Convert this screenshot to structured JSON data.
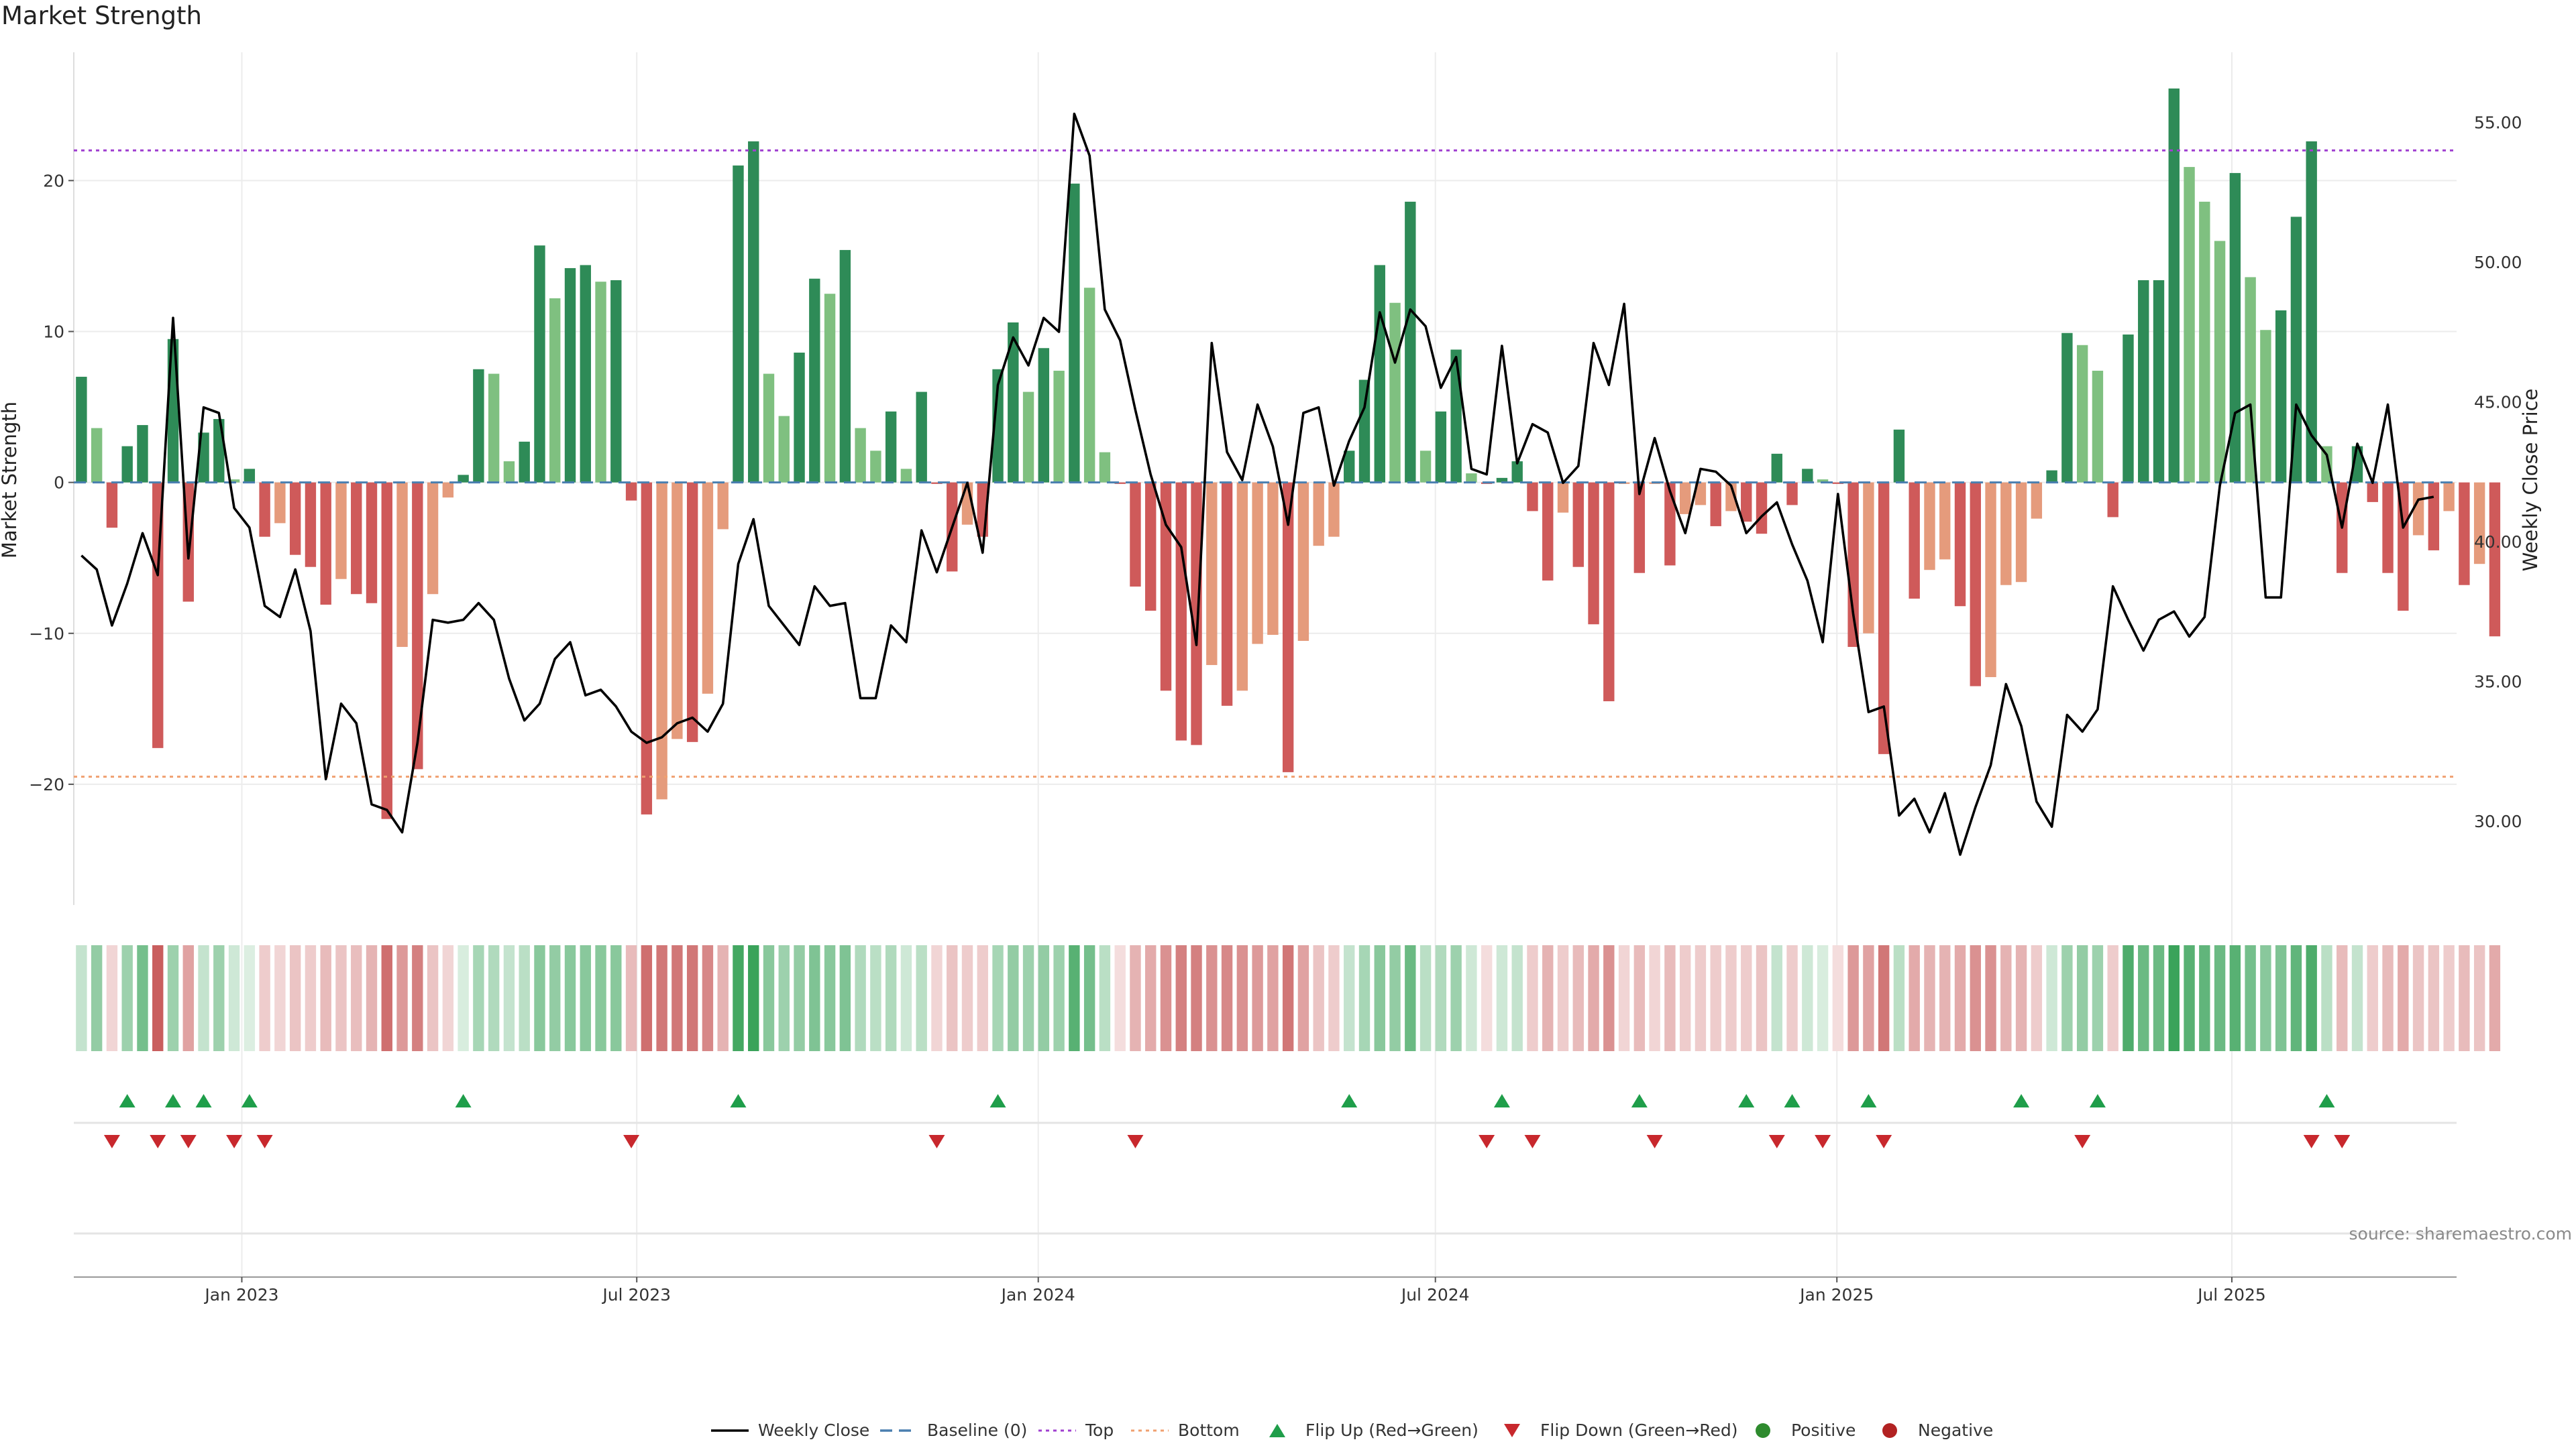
{
  "title": "Market Strength",
  "source": "source: sharemaestro.com",
  "colors": {
    "pos_strong": "#2e8b57",
    "pos_light": "#7fc080",
    "neg_strong": "#cf5a5a",
    "neg_light": "#e59b7c",
    "price_line": "#000000",
    "top_line": "#a040d0",
    "bottom_line": "#f0a070",
    "baseline": "#4a7fb0",
    "flip_up": "#1f9e4a",
    "flip_down": "#c8282d",
    "positive_dot": "#2e8b2e",
    "negative_dot": "#b22222"
  },
  "chart_data": {
    "type": "bar+line",
    "y_left_label": "Market Strength",
    "y_right_label": "Weekly Close Price",
    "y_left_ticks": [
      "−20",
      "−10",
      "0",
      "10",
      "20"
    ],
    "y_left_tick_values": [
      -20,
      -10,
      0,
      10,
      20
    ],
    "y_left_range": [
      -28,
      28.5
    ],
    "y_right_ticks": [
      "30.00",
      "35.00",
      "40.00",
      "45.00",
      "50.00",
      "55.00"
    ],
    "y_right_tick_values": [
      30,
      35,
      40,
      45,
      50,
      55
    ],
    "y_right_range": [
      27.0,
      57.5
    ],
    "top_threshold": 22,
    "bottom_threshold": -19.5,
    "x_range": [
      "2022-10-16",
      "2025-10-12"
    ],
    "x_ticks": [
      {
        "label": "Jan 2023",
        "date": "2023-01-01"
      },
      {
        "label": "Jul 2023",
        "date": "2023-07-01"
      },
      {
        "label": "Jan 2024",
        "date": "2024-01-01"
      },
      {
        "label": "Jul 2024",
        "date": "2024-07-01"
      },
      {
        "label": "Jan 2025",
        "date": "2025-01-01"
      },
      {
        "label": "Jul 2025",
        "date": "2025-07-01"
      }
    ],
    "first_week": "2022-10-16",
    "strength": [
      7,
      3.6,
      -3,
      2.4,
      3.8,
      -17.6,
      9.5,
      -7.9,
      3.3,
      4.2,
      0.2,
      0.9,
      -3.6,
      -2.7,
      -4.8,
      -5.6,
      -8.1,
      -6.4,
      -7.4,
      -8.0,
      -22.3,
      -10.9,
      -19.0,
      -7.4,
      -1.0,
      0.5,
      7.5,
      7.2,
      1.4,
      2.7,
      15.7,
      12.2,
      14.2,
      14.4,
      13.3,
      13.4,
      -1.2,
      -22.0,
      -21.0,
      -17.0,
      -17.2,
      -14.0,
      -3.1,
      21.0,
      22.6,
      7.2,
      4.4,
      8.6,
      13.5,
      12.5,
      15.4,
      3.6,
      2.1,
      4.7,
      0.9,
      6.0,
      -0.1,
      -5.9,
      -2.8,
      -3.6,
      7.5,
      10.6,
      6.0,
      8.9,
      7.4,
      19.8,
      12.9,
      2.0,
      -0.1,
      -6.9,
      -8.5,
      -13.8,
      -17.1,
      -17.4,
      -12.1,
      -14.8,
      -13.8,
      -10.7,
      -10.1,
      -19.2,
      -10.5,
      -4.2,
      -3.6,
      2.1,
      6.8,
      14.4,
      11.9,
      18.6,
      2.1,
      4.7,
      8.8,
      0.6,
      -0.1,
      0.3,
      1.4,
      -1.9,
      -6.5,
      -2.0,
      -5.6,
      -9.4,
      -14.5,
      -0.1,
      -6.0,
      -0.1,
      -5.5,
      -2.1,
      -1.5,
      -2.9,
      -1.9,
      -2.6,
      -3.4,
      1.9,
      -1.5,
      0.9,
      0.2,
      -0.1,
      -10.9,
      -10.0,
      -18.0,
      3.5,
      -7.7,
      -5.8,
      -5.1,
      -8.2,
      -13.5,
      -12.9,
      -6.8,
      -6.6,
      -2.4,
      0.8,
      9.9,
      9.1,
      7.4,
      -2.3,
      9.8,
      13.4,
      13.4,
      26.1,
      20.9,
      18.6,
      16.0,
      20.5,
      13.6,
      10.1,
      11.4,
      17.6,
      22.6,
      2.4,
      -6.0,
      2.4,
      -1.3,
      -6.0,
      -8.5,
      -3.5,
      -4.5,
      -1.9,
      -6.8,
      -5.4,
      -10.2
    ],
    "close": [
      39.5,
      39.0,
      37.0,
      38.5,
      40.3,
      38.8,
      48.0,
      39.4,
      44.8,
      44.6,
      41.2,
      40.5,
      37.7,
      37.3,
      39.0,
      36.8,
      31.5,
      34.2,
      33.5,
      30.6,
      30.4,
      29.6,
      32.8,
      37.2,
      37.1,
      37.2,
      37.8,
      37.2,
      35.1,
      33.6,
      34.2,
      35.8,
      36.4,
      34.5,
      34.7,
      34.1,
      33.2,
      32.8,
      33.0,
      33.5,
      33.7,
      33.2,
      34.2,
      39.2,
      40.8,
      37.7,
      37.0,
      36.3,
      38.4,
      37.7,
      37.8,
      34.4,
      34.4,
      37.0,
      36.4,
      40.4,
      38.9,
      40.5,
      42.1,
      39.6,
      45.6,
      47.3,
      46.3,
      48.0,
      47.5,
      55.3,
      53.8,
      48.3,
      47.2,
      44.7,
      42.4,
      40.6,
      39.8,
      36.3,
      47.1,
      43.2,
      42.2,
      44.9,
      43.4,
      40.6,
      44.6,
      44.8,
      42.0,
      43.6,
      44.8,
      48.2,
      46.4,
      48.3,
      47.7,
      45.5,
      46.6,
      42.6,
      42.4,
      47.0,
      42.8,
      44.2,
      43.9,
      42.1,
      42.7,
      47.1,
      45.6,
      48.5,
      41.7,
      43.7,
      41.8,
      40.3,
      42.6,
      42.5,
      42.0,
      40.3,
      40.9,
      41.4,
      39.9,
      38.6,
      36.4,
      41.7,
      37.4,
      33.9,
      34.1,
      30.2,
      30.8,
      29.6,
      31.0,
      28.8,
      30.5,
      32.0,
      34.9,
      33.4,
      30.7,
      29.8,
      33.8,
      33.2,
      34.0,
      38.4,
      37.2,
      36.1,
      37.2,
      37.5,
      36.6,
      37.3,
      42.0,
      44.6,
      44.9,
      38.0,
      38.0,
      44.9,
      43.8,
      43.1,
      40.5,
      43.5,
      42.1,
      44.9,
      40.5,
      41.5,
      41.6
    ],
    "heat_intensity": [
      0.3,
      0.55,
      0.25,
      0.5,
      0.7,
      0.95,
      0.5,
      0.55,
      0.3,
      0.5,
      0.25,
      0.15,
      0.3,
      0.25,
      0.35,
      0.3,
      0.4,
      0.35,
      0.38,
      0.45,
      0.85,
      0.6,
      0.75,
      0.35,
      0.25,
      0.2,
      0.45,
      0.4,
      0.3,
      0.35,
      0.6,
      0.55,
      0.6,
      0.6,
      0.6,
      0.6,
      0.4,
      0.85,
      0.8,
      0.8,
      0.8,
      0.7,
      0.45,
      0.95,
      1.0,
      0.6,
      0.5,
      0.55,
      0.65,
      0.6,
      0.65,
      0.4,
      0.35,
      0.4,
      0.25,
      0.35,
      0.25,
      0.35,
      0.3,
      0.3,
      0.45,
      0.55,
      0.5,
      0.55,
      0.5,
      0.85,
      0.7,
      0.35,
      0.2,
      0.45,
      0.5,
      0.65,
      0.75,
      0.75,
      0.65,
      0.7,
      0.65,
      0.6,
      0.55,
      0.8,
      0.55,
      0.35,
      0.3,
      0.3,
      0.45,
      0.6,
      0.55,
      0.75,
      0.35,
      0.4,
      0.5,
      0.25,
      0.2,
      0.25,
      0.3,
      0.3,
      0.45,
      0.3,
      0.4,
      0.5,
      0.65,
      0.25,
      0.4,
      0.25,
      0.4,
      0.3,
      0.3,
      0.3,
      0.3,
      0.3,
      0.35,
      0.3,
      0.3,
      0.25,
      0.2,
      0.2,
      0.6,
      0.55,
      0.8,
      0.35,
      0.5,
      0.45,
      0.45,
      0.5,
      0.65,
      0.65,
      0.45,
      0.45,
      0.3,
      0.25,
      0.5,
      0.55,
      0.5,
      0.3,
      0.9,
      0.75,
      0.75,
      1.0,
      0.85,
      0.8,
      0.75,
      0.85,
      0.7,
      0.6,
      0.65,
      0.8,
      0.9,
      0.35,
      0.4,
      0.3,
      0.3,
      0.4,
      0.5,
      0.35,
      0.35,
      0.3,
      0.4,
      0.35,
      0.5
    ],
    "flip_up_weeks": [
      3,
      6,
      8,
      11,
      25,
      43,
      60,
      83,
      93,
      102,
      109,
      112,
      117,
      127,
      132,
      147
    ],
    "flip_down_weeks": [
      2,
      5,
      7,
      10,
      12,
      36,
      56,
      69,
      92,
      95,
      103,
      111,
      114,
      118,
      131,
      146,
      148
    ],
    "legend": [
      {
        "label": "Weekly Close",
        "kind": "solid-line"
      },
      {
        "label": "Baseline (0)",
        "kind": "dashed-line"
      },
      {
        "label": "Top",
        "kind": "dotted-line"
      },
      {
        "label": "Bottom",
        "kind": "dotted-line"
      },
      {
        "label": "Flip Up (Red→Green)",
        "kind": "triangle-up"
      },
      {
        "label": "Flip Down (Green→Red)",
        "kind": "triangle-down"
      },
      {
        "label": "Positive",
        "kind": "dot"
      },
      {
        "label": "Negative",
        "kind": "dot"
      }
    ]
  }
}
